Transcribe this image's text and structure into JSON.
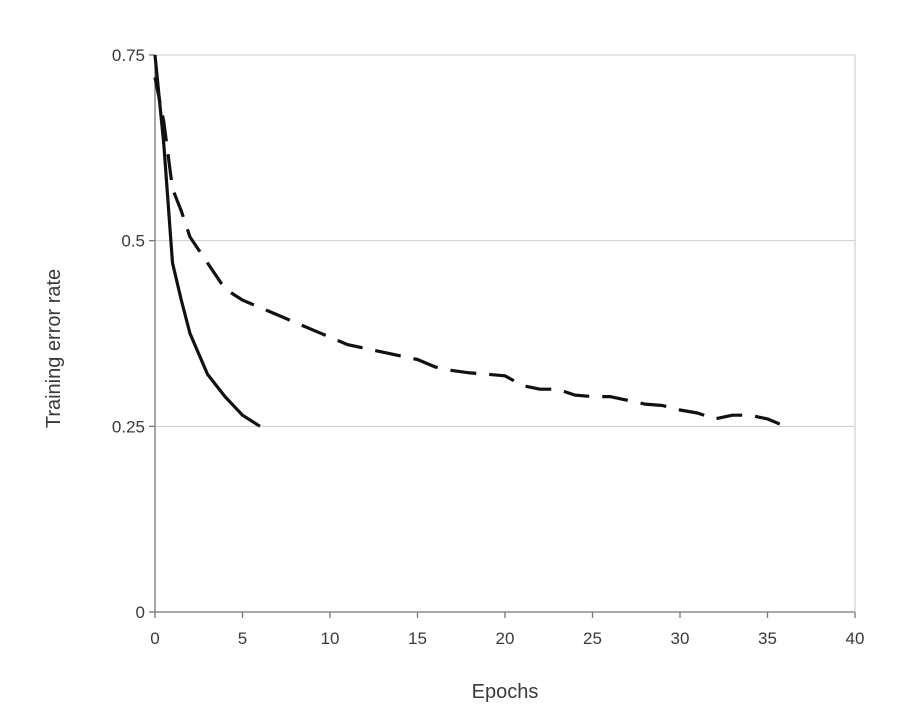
{
  "chart_data": {
    "type": "line",
    "title": "",
    "xlabel": "Epochs",
    "ylabel": "Training error rate",
    "xlim": [
      0,
      40
    ],
    "ylim": [
      0,
      0.75
    ],
    "x_ticks": [
      0,
      5,
      10,
      15,
      20,
      25,
      30,
      35,
      40
    ],
    "x_tick_labels": [
      "0",
      "5",
      "10",
      "15",
      "20",
      "25",
      "30",
      "35",
      "40"
    ],
    "y_ticks": [
      0,
      0.25,
      0.5,
      0.75
    ],
    "y_tick_labels": [
      "0",
      "0.25",
      "0.5",
      "0.75"
    ],
    "grid": "horizontal",
    "legend": "none",
    "series": [
      {
        "style": "solid",
        "color": "#111111",
        "x": [
          0,
          0.5,
          1,
          1.5,
          2,
          3,
          4,
          5,
          6
        ],
        "y": [
          0.75,
          0.63,
          0.47,
          0.42,
          0.375,
          0.32,
          0.29,
          0.265,
          0.25
        ]
      },
      {
        "style": "dashed",
        "color": "#111111",
        "x": [
          0,
          0.5,
          1,
          1.5,
          2,
          3,
          4,
          5,
          6,
          7,
          8,
          9,
          10,
          11,
          12,
          13,
          14,
          15,
          16,
          17,
          18,
          19,
          20,
          21,
          22,
          23,
          24,
          25,
          26,
          27,
          28,
          29,
          30,
          31,
          32,
          33,
          34,
          35,
          36
        ],
        "y": [
          0.72,
          0.66,
          0.57,
          0.54,
          0.505,
          0.47,
          0.435,
          0.42,
          0.41,
          0.4,
          0.39,
          0.38,
          0.37,
          0.36,
          0.355,
          0.35,
          0.345,
          0.34,
          0.33,
          0.325,
          0.322,
          0.32,
          0.318,
          0.305,
          0.3,
          0.3,
          0.292,
          0.29,
          0.29,
          0.285,
          0.28,
          0.278,
          0.272,
          0.268,
          0.26,
          0.265,
          0.265,
          0.26,
          0.25
        ]
      }
    ]
  }
}
